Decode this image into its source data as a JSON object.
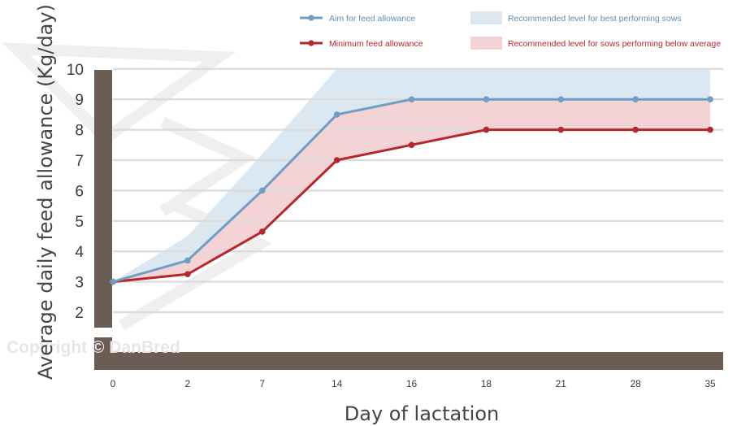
{
  "colors": {
    "aim": "#6f9ec2",
    "minimum": "#b5272d",
    "band_best": "#dbe8f1",
    "band_below": "#f4d3d7",
    "axis": "#6b5d54",
    "grid": "#dcdcdc",
    "watermark": "#e6e6e6"
  },
  "watermark": "Copyright © DanBred",
  "chart_data": {
    "type": "line",
    "xlabel": "Day of lactation",
    "ylabel": "Average daily feed allowance (Kg/day)",
    "categories": [
      "0",
      "2",
      "7",
      "14",
      "16",
      "18",
      "21",
      "28",
      "35"
    ],
    "y_ticks": [
      2,
      3,
      4,
      5,
      6,
      7,
      8,
      9,
      10
    ],
    "ylim": [
      1.5,
      10
    ],
    "y_axis_break": true,
    "grid": true,
    "legend_position": "top",
    "series": [
      {
        "name": "Aim for feed allowance",
        "values": [
          3.0,
          3.7,
          6.0,
          8.5,
          9.0,
          9.0,
          9.0,
          9.0,
          9.0
        ]
      },
      {
        "name": "Minimum feed allowance",
        "values": [
          3.0,
          3.25,
          4.65,
          7.0,
          7.5,
          8.0,
          8.0,
          8.0,
          8.0
        ]
      }
    ],
    "bands": [
      {
        "name": "Recommended level for best performing sows",
        "lower": [
          3.0,
          3.7,
          6.0,
          8.5,
          9.0,
          9.0,
          9.0,
          9.0,
          9.0
        ],
        "upper": [
          3.0,
          4.5,
          7.2,
          10.0,
          10.0,
          10.0,
          10.0,
          10.0,
          10.0
        ]
      },
      {
        "name": "Recommended level for sows performing below average",
        "lower": [
          3.0,
          3.25,
          4.65,
          7.0,
          7.5,
          8.0,
          8.0,
          8.0,
          8.0
        ],
        "upper": [
          3.0,
          3.7,
          6.0,
          8.5,
          9.0,
          9.0,
          9.0,
          9.0,
          9.0
        ]
      }
    ]
  }
}
